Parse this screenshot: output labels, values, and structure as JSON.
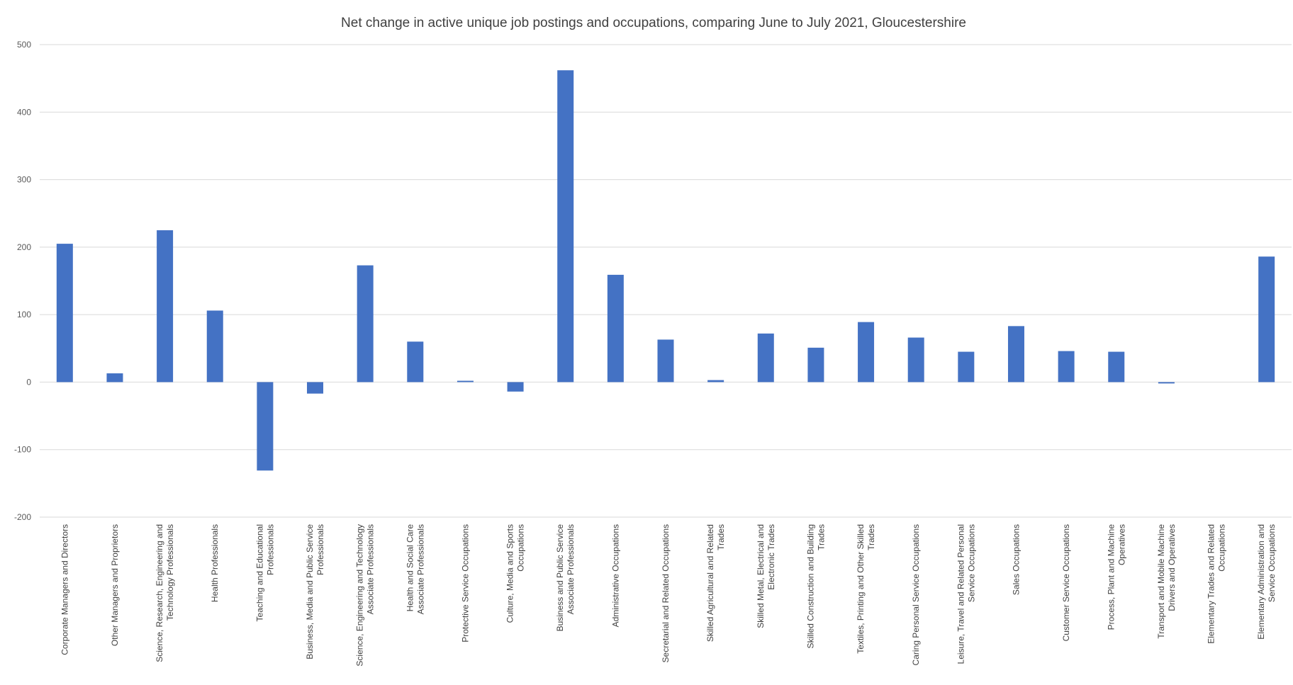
{
  "chart_data": {
    "type": "bar",
    "title": "Net change in active unique job postings and occupations, comparing June to July 2021, Gloucestershire",
    "xlabel": "",
    "ylabel": "",
    "ylim": [
      -200,
      500
    ],
    "yticks": [
      500,
      400,
      300,
      200,
      100,
      0,
      -100,
      -200
    ],
    "grid": true,
    "legend": "none",
    "bar_color": "#4472c4",
    "categories": [
      [
        "Corporate Managers and Directors"
      ],
      [
        "Other Managers and Proprietors"
      ],
      [
        "Science, Research, Engineering and",
        "Technology Professionals"
      ],
      [
        "Health Professionals"
      ],
      [
        "Teaching and Educational",
        "Professionals"
      ],
      [
        "Business, Media and Public Service",
        "Professionals"
      ],
      [
        "Science, Engineering and Technology",
        "Associate Professionals"
      ],
      [
        "Health and Social Care",
        "Associate Professionals"
      ],
      [
        "Protective Service Occupations"
      ],
      [
        "Culture, Media and Sports",
        "Occupations"
      ],
      [
        "Business and Public Service",
        "Associate Professionals"
      ],
      [
        "Administrative Occupations"
      ],
      [
        "Secretarial and Related Occupations"
      ],
      [
        "Skilled Agricultural and Related",
        "Trades"
      ],
      [
        "Skilled Metal, Electrical and",
        "Electronic Trades"
      ],
      [
        "Skilled Construction and Building",
        "Trades"
      ],
      [
        "Textiles, Printing and Other Skilled",
        "Trades"
      ],
      [
        "Caring Personal Service Occupations"
      ],
      [
        "Leisure, Travel and Related Personal",
        "Service Occupations"
      ],
      [
        "Sales Occupations"
      ],
      [
        "Customer Service Occupations"
      ],
      [
        "Process, Plant and Machine",
        "Operatives"
      ],
      [
        "Transport and Mobile Machine",
        "Drivers and Operatives"
      ],
      [
        "Elementary Trades and Related",
        "Occupations"
      ],
      [
        "Elementary Administration and",
        "Service Occupations"
      ]
    ],
    "values": [
      205,
      13,
      225,
      106,
      -131,
      -17,
      173,
      60,
      2,
      -14,
      462,
      159,
      63,
      3,
      72,
      51,
      89,
      66,
      45,
      83,
      46,
      45,
      -2,
      0,
      186
    ]
  }
}
